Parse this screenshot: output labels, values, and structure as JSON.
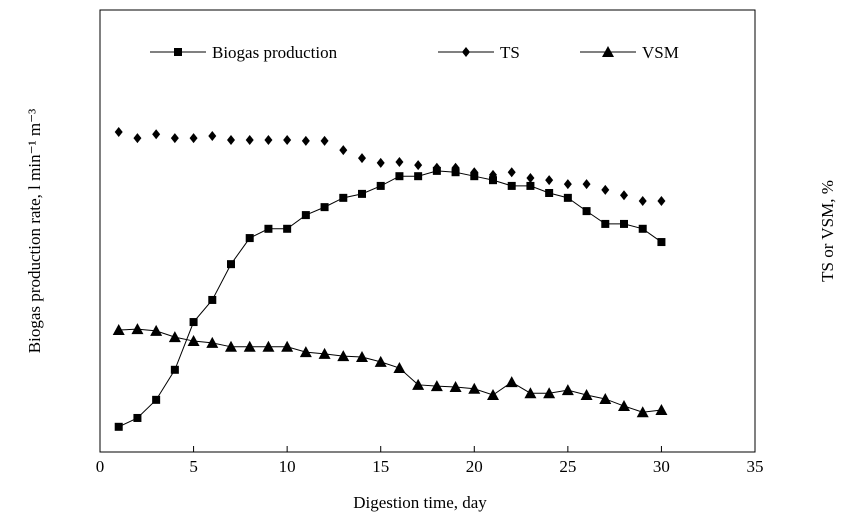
{
  "chart_data": {
    "type": "scatter",
    "x_label": "Digestion time, day",
    "y_label": "Biogas production rate, l min⁻¹ m⁻³",
    "y2_label": "TS  or VSM, %",
    "xlim": [
      0,
      35
    ],
    "xticks": [
      0,
      5,
      10,
      15,
      20,
      25,
      30,
      35
    ],
    "ylim": [
      0,
      100
    ],
    "x": [
      1,
      2,
      3,
      4,
      5,
      6,
      7,
      8,
      9,
      10,
      11,
      12,
      13,
      14,
      15,
      16,
      17,
      18,
      19,
      20,
      21,
      22,
      23,
      24,
      25,
      26,
      27,
      28,
      29,
      30
    ],
    "series": [
      {
        "name": "Biogas production",
        "color": "#000000",
        "marker": "square",
        "line": true,
        "values": [
          5.7,
          7.7,
          11.8,
          18.6,
          29.4,
          34.4,
          42.5,
          48.4,
          50.5,
          50.5,
          53.6,
          55.4,
          57.5,
          58.4,
          60.2,
          62.4,
          62.4,
          63.6,
          63.3,
          62.4,
          61.5,
          60.2,
          60.2,
          58.6,
          57.5,
          54.5,
          51.6,
          51.6,
          50.5,
          47.5
        ]
      },
      {
        "name": "TS",
        "color": "#000000",
        "marker": "diamond",
        "line": false,
        "values": [
          72.4,
          71.0,
          71.9,
          71.0,
          71.0,
          71.5,
          70.6,
          70.6,
          70.6,
          70.6,
          70.4,
          70.4,
          68.3,
          66.5,
          65.4,
          65.6,
          64.9,
          64.3,
          64.3,
          63.3,
          62.7,
          63.3,
          62.0,
          61.5,
          60.6,
          60.6,
          59.3,
          58.1,
          56.8,
          56.8
        ]
      },
      {
        "name": "VSM",
        "color": "#000000",
        "marker": "triangle",
        "line": true,
        "values": [
          27.6,
          27.8,
          27.4,
          26.0,
          25.1,
          24.7,
          23.8,
          23.8,
          23.8,
          23.8,
          22.6,
          22.2,
          21.7,
          21.5,
          20.4,
          19.0,
          15.2,
          14.9,
          14.7,
          14.3,
          12.9,
          15.8,
          13.3,
          13.3,
          14.0,
          12.9,
          12.0,
          10.4,
          9.0,
          9.5
        ]
      }
    ]
  }
}
